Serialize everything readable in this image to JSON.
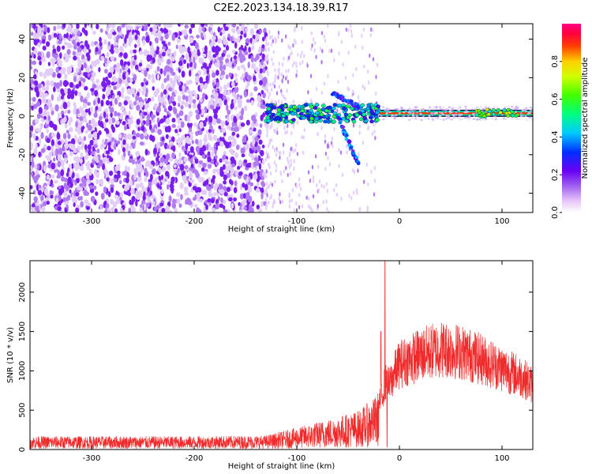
{
  "figure": {
    "title": "C2E2.2023.134.18.39.R17"
  },
  "chart_data": [
    {
      "type": "heatmap",
      "title": "C2E2.2023.134.18.39.R17",
      "xlabel": "Height of straight line (km)",
      "ylabel": "Frequency (Hz)",
      "xlim": [
        -360,
        130
      ],
      "ylim": [
        -50,
        48
      ],
      "xticks": [
        -300,
        -200,
        -100,
        0,
        100
      ],
      "yticks": [
        -40,
        -20,
        0,
        20,
        40
      ],
      "grid": false,
      "colormap": "rainbow",
      "features": [
        {
          "name": "background-noise",
          "x_range": [
            -360,
            -130
          ],
          "y_range": [
            -50,
            48
          ],
          "intensity": [
            0.1,
            0.2
          ]
        },
        {
          "name": "transition-noise",
          "x_range": [
            -130,
            -20
          ],
          "y_range": [
            -50,
            48
          ],
          "intensity": [
            0.05,
            0.15
          ]
        },
        {
          "name": "signal-band",
          "x_range": [
            -130,
            130
          ],
          "center_y": 1.5,
          "intensity": 0.9
        },
        {
          "name": "downward-branch",
          "x_start": -60,
          "x_end": -40,
          "y_start": 0,
          "y_end": -25
        },
        {
          "name": "upward-branch",
          "x_start": -65,
          "x_end": -40,
          "y_start": 12,
          "y_end": 5
        }
      ],
      "colorbar": {
        "label": "Normalized spectral amplitude",
        "range": [
          0,
          1
        ],
        "ticks": [
          0.0,
          0.2,
          0.4,
          0.6,
          0.8
        ]
      }
    },
    {
      "type": "line",
      "xlabel": "Height of straight line (km)",
      "ylabel": "SNR (10 * v/v)",
      "xlim": [
        -360,
        130
      ],
      "ylim": [
        0,
        2400
      ],
      "xticks": [
        -300,
        -200,
        -100,
        0,
        100
      ],
      "yticks": [
        0,
        500,
        1000,
        1500,
        2000
      ],
      "grid": false,
      "series": [
        {
          "color": "#ef2b2b",
          "envelope_x": [
            -360,
            -200,
            -130,
            -100,
            -60,
            -40,
            -25,
            -18,
            -14,
            -10,
            -5,
            0,
            20,
            40,
            60,
            80,
            100,
            120,
            130
          ],
          "envelope_y": [
            170,
            170,
            180,
            280,
            420,
            500,
            650,
            800,
            1100,
            1050,
            1250,
            1400,
            1550,
            1650,
            1600,
            1480,
            1330,
            1180,
            1050
          ],
          "spikes": [
            {
              "x": -14,
              "y": 2400
            },
            {
              "x": -18,
              "y": 1500
            },
            {
              "x": -12,
              "y": 30
            }
          ]
        }
      ]
    }
  ]
}
